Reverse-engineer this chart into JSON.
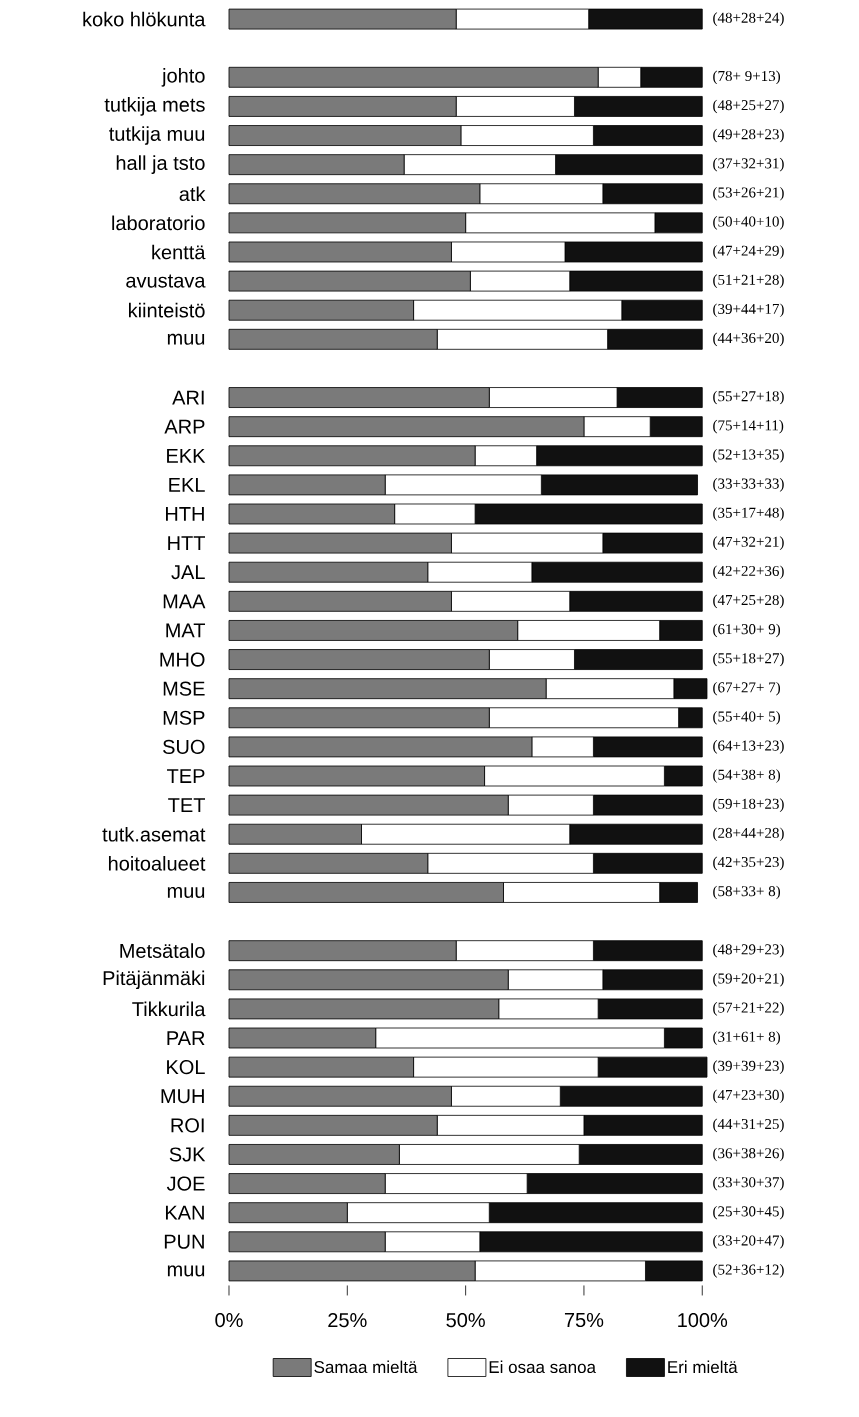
{
  "chart_data": {
    "type": "bar",
    "orientation": "horizontal",
    "stacked": true,
    "categories": [
      "koko hlökunta",
      null,
      "johto",
      "tutkija mets",
      "tutkija muu",
      "hall ja tsto",
      "atk",
      "laboratorio",
      "kenttä",
      "avustava",
      "kiinteistö",
      "muu",
      null,
      "ARI",
      "ARP",
      "EKK",
      "EKL",
      "HTH",
      "HTT",
      "JAL",
      "MAA",
      "MAT",
      "MHO",
      "MSE",
      "MSP",
      "SUO",
      "TEP",
      "TET",
      "tutk.asemat",
      "hoitoalueet",
      "muu",
      null,
      "Metsätalo",
      "Pitäjänmäki",
      "Tikkurila",
      "PAR",
      "KOL",
      "MUH",
      "ROI",
      "SJK",
      "JOE",
      "KAN",
      "PUN",
      "muu"
    ],
    "series": [
      {
        "name": "Samaa mieltä",
        "color": "#7a7a7a",
        "values": [
          48,
          null,
          78,
          48,
          49,
          37,
          53,
          50,
          47,
          51,
          39,
          44,
          null,
          55,
          75,
          52,
          33,
          35,
          47,
          42,
          47,
          61,
          55,
          67,
          55,
          64,
          54,
          59,
          28,
          42,
          58,
          null,
          48,
          59,
          57,
          31,
          39,
          47,
          44,
          36,
          33,
          25,
          33,
          52
        ]
      },
      {
        "name": "Ei osaa sanoa",
        "color": "#ffffff",
        "values": [
          28,
          null,
          9,
          25,
          28,
          32,
          26,
          40,
          24,
          21,
          44,
          36,
          null,
          27,
          14,
          13,
          33,
          17,
          32,
          22,
          25,
          30,
          18,
          27,
          40,
          13,
          38,
          18,
          44,
          35,
          33,
          null,
          29,
          20,
          21,
          61,
          39,
          23,
          31,
          38,
          30,
          30,
          20,
          36
        ]
      },
      {
        "name": "Eri mieltä",
        "color": "#111111",
        "values": [
          24,
          null,
          13,
          27,
          23,
          31,
          21,
          10,
          29,
          28,
          17,
          20,
          null,
          18,
          11,
          35,
          33,
          48,
          21,
          36,
          28,
          9,
          27,
          7,
          5,
          23,
          8,
          23,
          28,
          23,
          8,
          null,
          23,
          21,
          22,
          8,
          23,
          30,
          25,
          26,
          37,
          45,
          47,
          12
        ]
      }
    ],
    "totals": [
      "(48+28+24)",
      null,
      "(78+ 9+13)",
      "(48+25+27)",
      "(49+28+23)",
      "(37+32+31)",
      "(53+26+21)",
      "(50+40+10)",
      "(47+24+29)",
      "(51+21+28)",
      "(39+44+17)",
      "(44+36+20)",
      null,
      "(55+27+18)",
      "(75+14+11)",
      "(52+13+35)",
      "(33+33+33)",
      "(35+17+48)",
      "(47+32+21)",
      "(42+22+36)",
      "(47+25+28)",
      "(61+30+ 9)",
      "(55+18+27)",
      "(67+27+ 7)",
      "(55+40+ 5)",
      "(64+13+23)",
      "(54+38+ 8)",
      "(59+18+23)",
      "(28+44+28)",
      "(42+35+23)",
      "(58+33+ 8)",
      null,
      "(48+29+23)",
      "(59+20+21)",
      "(57+21+22)",
      "(31+61+ 8)",
      "(39+39+23)",
      "(47+23+30)",
      "(44+31+25)",
      "(36+38+26)",
      "(33+30+37)",
      "(25+30+45)",
      "(33+20+47)",
      "(52+36+12)"
    ],
    "xlim": [
      0,
      101
    ],
    "xticks": [
      {
        "value": 0,
        "label": "0%"
      },
      {
        "value": 25,
        "label": "25%"
      },
      {
        "value": 50,
        "label": "50%"
      },
      {
        "value": 75,
        "label": "75%"
      },
      {
        "value": 100,
        "label": "100%"
      }
    ],
    "legend": "bottom"
  }
}
